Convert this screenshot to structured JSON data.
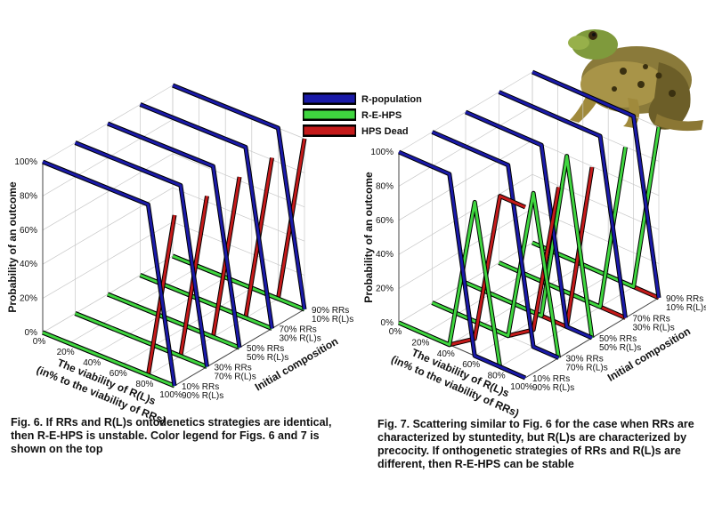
{
  "legend": [
    {
      "label": "R-population",
      "color": "#1a1aa8"
    },
    {
      "label": "R-E-HPS",
      "color": "#3fd63f"
    },
    {
      "label": "HPS Dead",
      "color": "#c41a1a"
    }
  ],
  "captions": {
    "fig6": "Fig. 6. If RRs and R(L)s ontodenetics strategies are identical, then  R-E-HPS  is unstable. Color legend for Figs. 6 and 7 is shown on the top",
    "fig7": "Fig. 7. Scattering similar to Fig. 6 for the case when RRs are characterized by stuntedity, but R(L)s are characterized by precocity. If onthogenetic strategies of RRs and R(L)s are different, then R-E-HPS can be stable"
  },
  "chart_data": [
    {
      "type": "line",
      "z_axis_label": "Probability of an outcome",
      "x_axis_label": [
        "The viability of R(L)s",
        "(in% to the viability of RRs)"
      ],
      "y_axis_label": "Initial composition",
      "z_ticks": [
        "0%",
        "20%",
        "40%",
        "60%",
        "80%",
        "100%"
      ],
      "x_ticks": [
        "0%",
        "20%",
        "40%",
        "60%",
        "80%",
        "100%"
      ],
      "y_ticks": [
        [
          "10% RRs",
          "90% R(L)s"
        ],
        [
          "30% RRs",
          "70% R(L)s"
        ],
        [
          "50% RRs",
          "50% R(L)s"
        ],
        [
          "70% RRs",
          "30% R(L)s"
        ],
        [
          "90% RRs",
          "10% R(L)s"
        ]
      ],
      "x": [
        0,
        20,
        40,
        60,
        80,
        100
      ],
      "compositions": [
        {
          "label": "10% RRs / 90% R(L)s",
          "R-population": [
            100,
            100,
            100,
            100,
            100,
            0
          ],
          "R-E-HPS": [
            0,
            0,
            0,
            0,
            0,
            0
          ],
          "HPS Dead": [
            0,
            0,
            0,
            0,
            0,
            100
          ]
        },
        {
          "label": "30% RRs / 70% R(L)s",
          "R-population": [
            100,
            100,
            100,
            100,
            100,
            0
          ],
          "R-E-HPS": [
            0,
            0,
            0,
            0,
            0,
            0
          ],
          "HPS Dead": [
            0,
            0,
            0,
            0,
            0,
            100
          ]
        },
        {
          "label": "50% RRs / 50% R(L)s",
          "R-population": [
            100,
            100,
            100,
            100,
            100,
            0
          ],
          "R-E-HPS": [
            0,
            0,
            0,
            0,
            0,
            0
          ],
          "HPS Dead": [
            0,
            0,
            0,
            0,
            0,
            100
          ]
        },
        {
          "label": "70% RRs / 30% R(L)s",
          "R-population": [
            100,
            100,
            100,
            100,
            100,
            0
          ],
          "R-E-HPS": [
            0,
            0,
            0,
            0,
            0,
            0
          ],
          "HPS Dead": [
            0,
            0,
            0,
            0,
            0,
            100
          ]
        },
        {
          "label": "90% RRs / 10% R(L)s",
          "R-population": [
            100,
            100,
            100,
            100,
            100,
            0
          ],
          "R-E-HPS": [
            0,
            0,
            0,
            0,
            0,
            0
          ],
          "HPS Dead": [
            0,
            0,
            0,
            0,
            0,
            100
          ]
        }
      ]
    },
    {
      "type": "line",
      "z_axis_label": "Probability of an outcome",
      "x_axis_label": [
        "The viability of R(L)s",
        "(in% to the viability of RRs)"
      ],
      "y_axis_label": "Initial composition",
      "z_ticks": [
        "0%",
        "20%",
        "40%",
        "60%",
        "80%",
        "100%"
      ],
      "x_ticks": [
        "0%",
        "20%",
        "40%",
        "60%",
        "80%",
        "100%"
      ],
      "y_ticks": [
        [
          "10% RRs",
          "90% R(L)s"
        ],
        [
          "30% RRs",
          "70% R(L)s"
        ],
        [
          "50% RRs",
          "50% R(L)s"
        ],
        [
          "70% RRs",
          "30% R(L)s"
        ],
        [
          "90% RRs",
          "10% R(L)s"
        ]
      ],
      "x": [
        0,
        20,
        40,
        60,
        80,
        100
      ],
      "compositions": [
        {
          "label": "10% RRs / 90% R(L)s",
          "R-population": [
            100,
            100,
            100,
            0,
            0,
            0
          ],
          "R-E-HPS": [
            0,
            0,
            0,
            90,
            0,
            0
          ],
          "HPS Dead": [
            0,
            0,
            0,
            10,
            100,
            100
          ]
        },
        {
          "label": "30% RRs / 70% R(L)s",
          "R-population": [
            100,
            100,
            100,
            100,
            0,
            0
          ],
          "R-E-HPS": [
            0,
            0,
            0,
            0,
            90,
            0
          ],
          "HPS Dead": [
            0,
            0,
            0,
            0,
            10,
            100
          ]
        },
        {
          "label": "50% RRs / 50% R(L)s",
          "R-population": [
            100,
            100,
            100,
            100,
            0,
            0
          ],
          "R-E-HPS": [
            0,
            0,
            0,
            0,
            100,
            0
          ],
          "HPS Dead": [
            0,
            0,
            0,
            0,
            0,
            100
          ]
        },
        {
          "label": "70% RRs / 30% R(L)s",
          "R-population": [
            100,
            100,
            100,
            100,
            100,
            0
          ],
          "R-E-HPS": [
            0,
            0,
            0,
            0,
            0,
            100
          ],
          "HPS Dead": [
            0,
            0,
            0,
            0,
            0,
            0
          ]
        },
        {
          "label": "90% RRs / 10% R(L)s",
          "R-population": [
            100,
            100,
            100,
            100,
            100,
            0
          ],
          "R-E-HPS": [
            0,
            0,
            0,
            0,
            0,
            100
          ],
          "HPS Dead": [
            0,
            0,
            0,
            0,
            0,
            0
          ]
        }
      ]
    }
  ]
}
